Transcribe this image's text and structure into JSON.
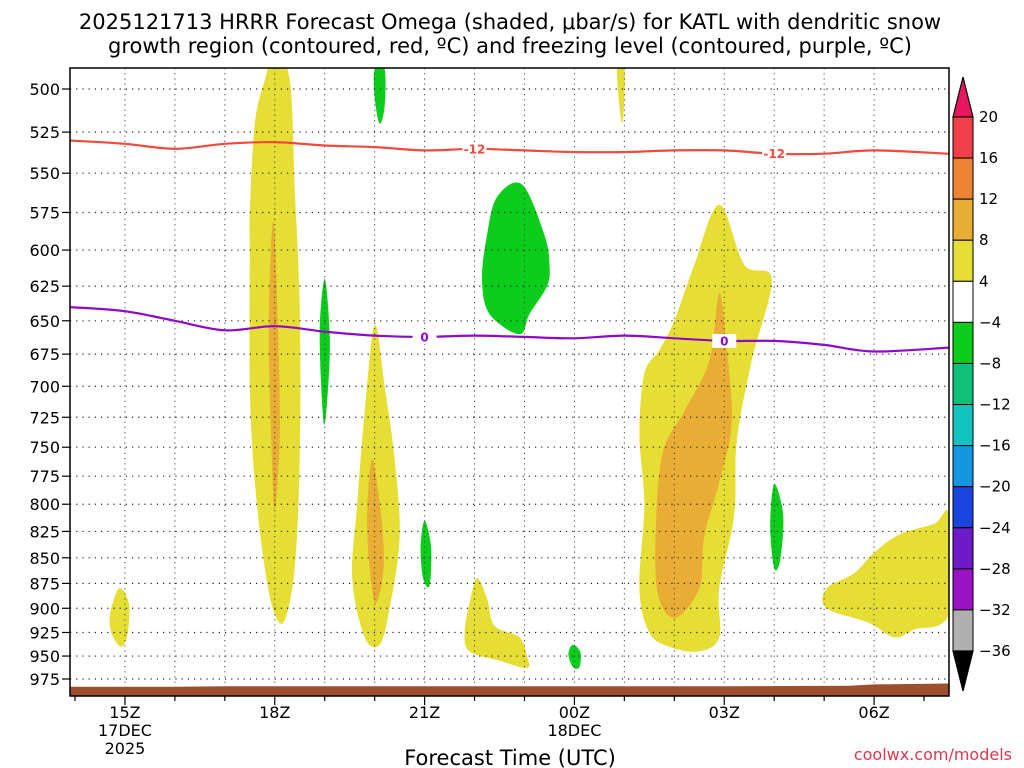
{
  "chart_data": {
    "type": "time-height cross section (filled contour)",
    "title_line1": "2025121713 HRRR Forecast Omega (shaded, μbar/s) for KATL with dendritic snow",
    "title_line2": "growth region (contoured, red, ºC) and freezing level (contoured, purple, ºC)",
    "xlabel": "Forecast Time (UTC)",
    "x_hour_range": [
      13.9,
      31.5
    ],
    "x_ticks": [
      {
        "hour": 15,
        "label": "15Z",
        "sub1": "17DEC",
        "sub2": "2025"
      },
      {
        "hour": 18,
        "label": "18Z",
        "sub1": "",
        "sub2": ""
      },
      {
        "hour": 21,
        "label": "21Z",
        "sub1": "",
        "sub2": ""
      },
      {
        "hour": 24,
        "label": "00Z",
        "sub1": "18DEC",
        "sub2": ""
      },
      {
        "hour": 27,
        "label": "03Z",
        "sub1": "",
        "sub2": ""
      },
      {
        "hour": 30,
        "label": "06Z",
        "sub1": "",
        "sub2": ""
      }
    ],
    "y_unit": "hPa",
    "y_range": [
      985,
      490
    ],
    "y_ticks": [
      500,
      525,
      550,
      575,
      600,
      625,
      650,
      675,
      700,
      725,
      750,
      775,
      800,
      825,
      850,
      875,
      900,
      925,
      950,
      975
    ],
    "grid": "dotted",
    "colorbar": {
      "levels": [
        20,
        16,
        12,
        8,
        4,
        -4,
        -8,
        -12,
        -16,
        -20,
        -24,
        -28,
        -32,
        -36
      ],
      "colors": [
        "#e8155f",
        "#f2404a",
        "#ee8433",
        "#e9ad35",
        "#e7de35",
        "#ffffff",
        "#0ccc1c",
        "#10c07a",
        "#12c3c0",
        "#1497e0",
        "#1a44e0",
        "#6e1ac8",
        "#9a12c4",
        "#b0b0b0",
        "#000000"
      ]
    },
    "red_contour": {
      "label": "-12",
      "label_hours": [
        22.0,
        28.0
      ],
      "points": [
        [
          13.9,
          530
        ],
        [
          15,
          532
        ],
        [
          16,
          535
        ],
        [
          17,
          532
        ],
        [
          18,
          531
        ],
        [
          19,
          533
        ],
        [
          20,
          534
        ],
        [
          21,
          536
        ],
        [
          22,
          535
        ],
        [
          23,
          536
        ],
        [
          24,
          537
        ],
        [
          25,
          537
        ],
        [
          26,
          536
        ],
        [
          27,
          536
        ],
        [
          28,
          538
        ],
        [
          29,
          538
        ],
        [
          30,
          536
        ],
        [
          31.5,
          538
        ]
      ]
    },
    "purple_contour": {
      "label": "0",
      "label_hours": [
        21.0,
        27.0
      ],
      "points": [
        [
          13.9,
          640
        ],
        [
          15,
          643
        ],
        [
          16,
          650
        ],
        [
          17,
          657
        ],
        [
          18,
          654
        ],
        [
          19,
          658
        ],
        [
          20,
          661
        ],
        [
          21,
          662
        ],
        [
          22,
          661
        ],
        [
          23,
          662
        ],
        [
          24,
          663
        ],
        [
          25,
          661
        ],
        [
          26,
          663
        ],
        [
          27,
          665
        ],
        [
          28,
          665
        ],
        [
          29,
          668
        ],
        [
          30,
          673
        ],
        [
          31.5,
          670
        ]
      ]
    },
    "shaded_regions": [
      {
        "value": 4,
        "points": [
          [
            17.8,
            495
          ],
          [
            18.0,
            480
          ],
          [
            18.3,
            495
          ],
          [
            18.4,
            560
          ],
          [
            18.5,
            640
          ],
          [
            18.5,
            760
          ],
          [
            18.4,
            860
          ],
          [
            18.2,
            912
          ],
          [
            18.0,
            906
          ],
          [
            17.8,
            860
          ],
          [
            17.6,
            780
          ],
          [
            17.5,
            700
          ],
          [
            17.5,
            600
          ],
          [
            17.5,
            575
          ],
          [
            17.6,
            520
          ]
        ]
      },
      {
        "value": 8,
        "points": [
          [
            17.97,
            580
          ],
          [
            18.06,
            650
          ],
          [
            18.1,
            740
          ],
          [
            18.0,
            805
          ],
          [
            17.93,
            745
          ],
          [
            17.88,
            650
          ]
        ]
      },
      {
        "value": 4,
        "points": [
          [
            20.0,
            653
          ],
          [
            20.2,
            700
          ],
          [
            20.4,
            760
          ],
          [
            20.5,
            830
          ],
          [
            20.3,
            900
          ],
          [
            20.1,
            938
          ],
          [
            19.8,
            930
          ],
          [
            19.55,
            870
          ],
          [
            19.65,
            800
          ],
          [
            19.8,
            720
          ]
        ]
      },
      {
        "value": 8,
        "points": [
          [
            19.95,
            760
          ],
          [
            20.13,
            810
          ],
          [
            20.18,
            860
          ],
          [
            20.02,
            895
          ],
          [
            19.9,
            860
          ],
          [
            19.85,
            810
          ]
        ]
      },
      {
        "value": 4,
        "points": [
          [
            14.7,
            907
          ],
          [
            14.88,
            880
          ],
          [
            15.08,
            895
          ],
          [
            15.05,
            928
          ],
          [
            14.92,
            940
          ],
          [
            14.74,
            927
          ]
        ]
      },
      {
        "value": 4,
        "points": [
          [
            22.05,
            870
          ],
          [
            22.25,
            890
          ],
          [
            22.4,
            918
          ],
          [
            22.9,
            930
          ],
          [
            23.05,
            950
          ],
          [
            23.05,
            963
          ],
          [
            22.5,
            955
          ],
          [
            21.9,
            945
          ],
          [
            21.8,
            925
          ],
          [
            21.9,
            895
          ]
        ]
      },
      {
        "value": 4,
        "points": [
          [
            26.9,
            570
          ],
          [
            27.4,
            610
          ],
          [
            27.95,
            620
          ],
          [
            27.55,
            680
          ],
          [
            27.25,
            745
          ],
          [
            27.2,
            810
          ],
          [
            26.9,
            880
          ],
          [
            26.9,
            930
          ],
          [
            26.5,
            945
          ],
          [
            25.9,
            940
          ],
          [
            25.5,
            925
          ],
          [
            25.3,
            880
          ],
          [
            25.4,
            800
          ],
          [
            25.3,
            740
          ],
          [
            25.4,
            690
          ],
          [
            25.7,
            672
          ],
          [
            26.0,
            650
          ],
          [
            26.4,
            610
          ]
        ]
      },
      {
        "value": 8,
        "points": [
          [
            26.9,
            630
          ],
          [
            27.05,
            670
          ],
          [
            27.15,
            730
          ],
          [
            26.9,
            780
          ],
          [
            26.6,
            830
          ],
          [
            26.5,
            880
          ],
          [
            26.0,
            910
          ],
          [
            25.65,
            880
          ],
          [
            25.65,
            800
          ],
          [
            25.8,
            750
          ],
          [
            26.2,
            720
          ],
          [
            26.7,
            680
          ]
        ]
      },
      {
        "value": 4,
        "points": [
          [
            31.2,
            818
          ],
          [
            31.5,
            810
          ],
          [
            31.5,
            905
          ],
          [
            30.8,
            922
          ],
          [
            30.4,
            930
          ],
          [
            29.9,
            915
          ],
          [
            29.05,
            900
          ],
          [
            29.05,
            880
          ],
          [
            29.6,
            865
          ],
          [
            30.0,
            845
          ],
          [
            30.5,
            828
          ]
        ]
      },
      {
        "value": 4,
        "points": [
          [
            24.85,
            489
          ],
          [
            25.0,
            489
          ],
          [
            24.98,
            515
          ],
          [
            24.93,
            517
          ]
        ]
      },
      {
        "value": -4,
        "points": [
          [
            22.95,
            557
          ],
          [
            23.4,
            590
          ],
          [
            23.5,
            610
          ],
          [
            23.45,
            625
          ],
          [
            23.1,
            645
          ],
          [
            22.9,
            660
          ],
          [
            22.3,
            645
          ],
          [
            22.15,
            620
          ],
          [
            22.25,
            590
          ],
          [
            22.45,
            565
          ]
        ]
      },
      {
        "value": -4,
        "points": [
          [
            20.0,
            489
          ],
          [
            20.2,
            489
          ],
          [
            20.2,
            510
          ],
          [
            20.1,
            520
          ],
          [
            20.0,
            505
          ]
        ]
      },
      {
        "value": -4,
        "points": [
          [
            19.0,
            620
          ],
          [
            19.1,
            660
          ],
          [
            19.07,
            700
          ],
          [
            18.98,
            730
          ],
          [
            18.9,
            660
          ]
        ]
      },
      {
        "value": -4,
        "points": [
          [
            21.0,
            815
          ],
          [
            21.13,
            840
          ],
          [
            21.1,
            877
          ],
          [
            20.97,
            870
          ],
          [
            20.92,
            840
          ]
        ]
      },
      {
        "value": -4,
        "points": [
          [
            23.97,
            938
          ],
          [
            24.12,
            946
          ],
          [
            24.1,
            962
          ],
          [
            23.97,
            962
          ],
          [
            23.88,
            948
          ]
        ]
      },
      {
        "value": -4,
        "points": [
          [
            28.0,
            782
          ],
          [
            28.18,
            810
          ],
          [
            28.12,
            852
          ],
          [
            28.0,
            860
          ],
          [
            27.92,
            820
          ]
        ]
      }
    ],
    "terrain": {
      "points": [
        [
          13.9,
          983.5
        ],
        [
          16,
          983.5
        ],
        [
          17,
          983
        ],
        [
          27,
          983
        ],
        [
          29.5,
          982.5
        ],
        [
          30,
          981
        ],
        [
          31.5,
          980
        ]
      ]
    }
  },
  "watermark": "coolwx.com/models"
}
